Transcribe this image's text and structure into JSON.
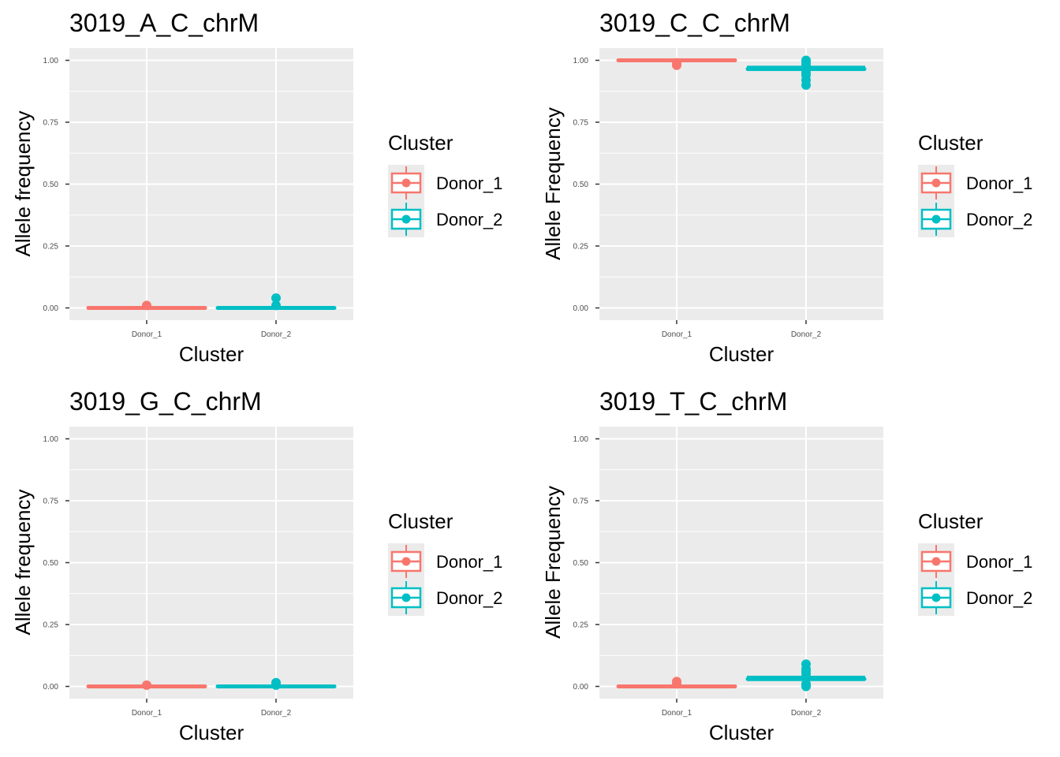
{
  "colors": {
    "panel_bg": "#EBEBEB",
    "grid": "#FFFFFF",
    "tick_text": "#4D4D4D",
    "Donor_1": "#F8766D",
    "Donor_2": "#00BFC4"
  },
  "chart_data": [
    {
      "type": "box",
      "title": "3019_A_C_chrM",
      "xlabel": "Cluster",
      "ylabel": "Allele frequency",
      "categories": [
        "Donor_1",
        "Donor_2"
      ],
      "ylim": [
        0,
        1.05
      ],
      "yticks": [
        "0.00",
        "0.25",
        "0.50",
        "0.75",
        "1.00"
      ],
      "grid": true,
      "legend": {
        "title": "Cluster",
        "position": "right",
        "entries": [
          "Donor_1",
          "Donor_2"
        ]
      },
      "series": [
        {
          "name": "Donor_1",
          "median": 0.0,
          "q1": 0.0,
          "q3": 0.0,
          "min": 0.0,
          "max": 0.0,
          "outliers": [
            0.01
          ]
        },
        {
          "name": "Donor_2",
          "median": 0.0,
          "q1": 0.0,
          "q3": 0.0,
          "min": 0.0,
          "max": 0.0,
          "outliers": [
            0.01,
            0.04
          ]
        }
      ]
    },
    {
      "type": "box",
      "title": "3019_C_C_chrM",
      "xlabel": "Cluster",
      "ylabel": "Allele Frequency",
      "categories": [
        "Donor_1",
        "Donor_2"
      ],
      "ylim": [
        0,
        1.05
      ],
      "yticks": [
        "0.00",
        "0.25",
        "0.50",
        "0.75",
        "1.00"
      ],
      "grid": true,
      "legend": {
        "title": "Cluster",
        "position": "right",
        "entries": [
          "Donor_1",
          "Donor_2"
        ]
      },
      "series": [
        {
          "name": "Donor_1",
          "median": 1.0,
          "q1": 1.0,
          "q3": 1.0,
          "min": 1.0,
          "max": 1.0,
          "outliers": [
            0.98,
            0.99
          ]
        },
        {
          "name": "Donor_2",
          "median": 0.965,
          "q1": 0.96,
          "q3": 0.975,
          "min": 0.96,
          "max": 0.975,
          "outliers": [
            0.9,
            0.92,
            0.94,
            0.95,
            0.98,
            0.99,
            1.0
          ]
        }
      ]
    },
    {
      "type": "box",
      "title": "3019_G_C_chrM",
      "xlabel": "Cluster",
      "ylabel": "Allele frequency",
      "categories": [
        "Donor_1",
        "Donor_2"
      ],
      "ylim": [
        0,
        1.05
      ],
      "yticks": [
        "0.00",
        "0.25",
        "0.50",
        "0.75",
        "1.00"
      ],
      "grid": true,
      "legend": {
        "title": "Cluster",
        "position": "right",
        "entries": [
          "Donor_1",
          "Donor_2"
        ]
      },
      "series": [
        {
          "name": "Donor_1",
          "median": 0.0,
          "q1": 0.0,
          "q3": 0.0,
          "min": 0.0,
          "max": 0.0,
          "outliers": [
            0.005
          ]
        },
        {
          "name": "Donor_2",
          "median": 0.0,
          "q1": 0.0,
          "q3": 0.0,
          "min": 0.0,
          "max": 0.0,
          "outliers": [
            0.005,
            0.015
          ]
        }
      ]
    },
    {
      "type": "box",
      "title": "3019_T_C_chrM",
      "xlabel": "Cluster",
      "ylabel": "Allele Frequency",
      "categories": [
        "Donor_1",
        "Donor_2"
      ],
      "ylim": [
        0,
        1.05
      ],
      "yticks": [
        "0.00",
        "0.25",
        "0.50",
        "0.75",
        "1.00"
      ],
      "grid": true,
      "legend": {
        "title": "Cluster",
        "position": "right",
        "entries": [
          "Donor_1",
          "Donor_2"
        ]
      },
      "series": [
        {
          "name": "Donor_1",
          "median": 0.0,
          "q1": 0.0,
          "q3": 0.0,
          "min": 0.0,
          "max": 0.0,
          "outliers": [
            0.01,
            0.02
          ]
        },
        {
          "name": "Donor_2",
          "median": 0.03,
          "q1": 0.025,
          "q3": 0.04,
          "min": 0.025,
          "max": 0.04,
          "outliers": [
            0.0,
            0.005,
            0.01,
            0.05,
            0.06,
            0.07,
            0.09
          ]
        }
      ]
    }
  ]
}
